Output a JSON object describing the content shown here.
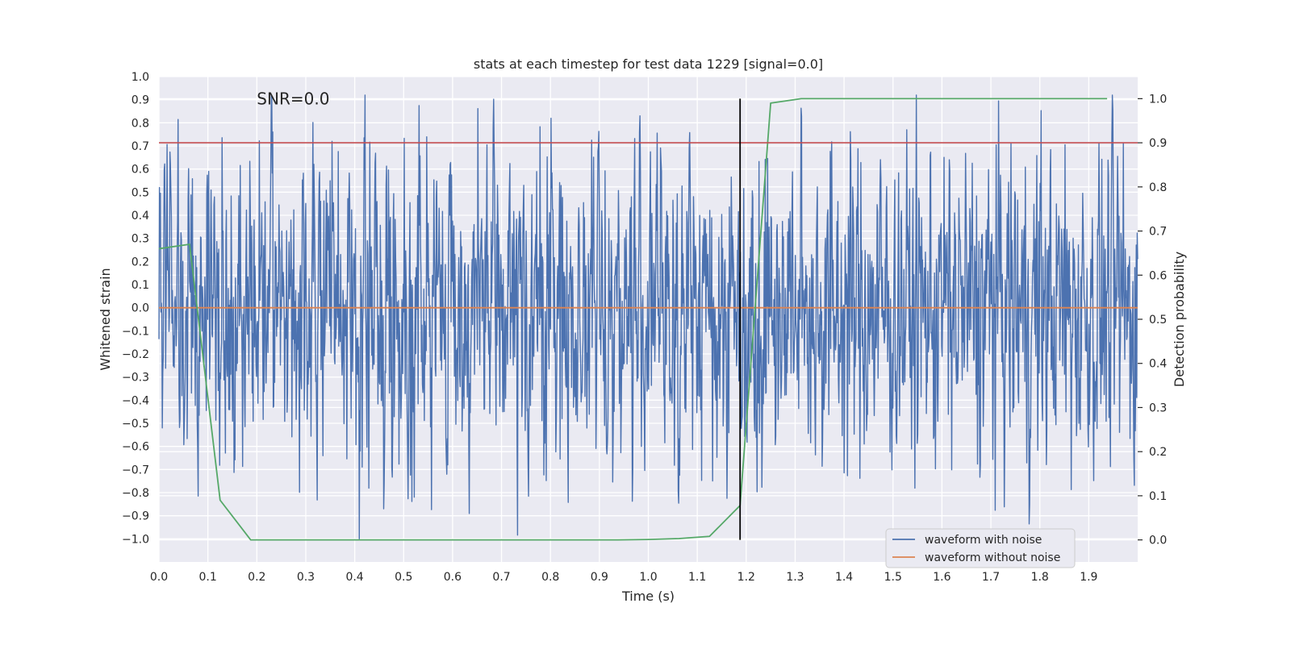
{
  "chart_data": {
    "type": "line",
    "title": "stats at each timestep for test data 1229 [signal=0.0]",
    "xlabel": "Time (s)",
    "ylabel": "Whitened strain",
    "y2label": "Detection probability",
    "annotation": "SNR=0.0",
    "xlim": [
      0.0,
      2.0
    ],
    "ylim": [
      -1.1,
      1.0
    ],
    "y2lim": [
      -0.05,
      1.05
    ],
    "grid": true,
    "legend_position": "lower right",
    "x_ticks": [
      "0.0",
      "0.1",
      "0.2",
      "0.3",
      "0.4",
      "0.5",
      "0.6",
      "0.7",
      "0.8",
      "0.9",
      "1.0",
      "1.1",
      "1.2",
      "1.3",
      "1.4",
      "1.5",
      "1.6",
      "1.7",
      "1.8",
      "1.9"
    ],
    "y_ticks": [
      "1.0",
      "0.9",
      "0.8",
      "0.7",
      "0.6",
      "0.5",
      "0.4",
      "0.3",
      "0.2",
      "0.1",
      "0.0",
      "−0.1",
      "−0.2",
      "−0.3",
      "−0.4",
      "−0.5",
      "−0.6",
      "−0.7",
      "−0.8",
      "−0.9",
      "−1.0"
    ],
    "y2_ticks": [
      "1.0",
      "0.9",
      "0.8",
      "0.7",
      "0.6",
      "0.5",
      "0.4",
      "0.3",
      "0.2",
      "0.1",
      "0.0"
    ],
    "series": [
      {
        "name": "waveform with noise",
        "axis": "left",
        "color": "#4c72b0",
        "description": "Noisy whitened strain sampled densely over 0-2 s, amplitude within about -1.0 to 0.92",
        "amplitude_range": [
          -1.0,
          0.92
        ],
        "samples": 2048
      },
      {
        "name": "waveform without noise",
        "axis": "left",
        "color": "#dd8452",
        "x": [
          0.0,
          2.0
        ],
        "y": [
          0.0,
          0.0
        ]
      },
      {
        "axis": "right",
        "color": "#55a868",
        "x": [
          0.0,
          0.0625,
          0.125,
          0.1875,
          0.25,
          0.3125,
          0.375,
          0.4375,
          0.5,
          0.5625,
          0.625,
          0.6875,
          0.75,
          0.8125,
          0.875,
          0.9375,
          1.0,
          1.0625,
          1.125,
          1.1875,
          1.25,
          1.3125,
          1.375,
          1.4375,
          1.5,
          1.5625,
          1.625,
          1.6875,
          1.75,
          1.8125,
          1.875,
          1.9375
        ],
        "y": [
          0.66,
          0.67,
          0.09,
          0.0,
          0.0,
          0.0,
          0.0,
          0.0,
          0.0,
          0.0,
          0.0,
          0.0,
          0.0,
          0.0,
          0.0,
          0.0,
          0.001,
          0.003,
          0.008,
          0.078,
          0.99,
          1.0,
          1.0,
          1.0,
          1.0,
          1.0,
          1.0,
          1.0,
          1.0,
          1.0,
          1.0,
          1.0
        ]
      }
    ],
    "hlines": [
      {
        "axis": "right",
        "y": 0.9,
        "color": "#c44e52"
      }
    ],
    "vlines": [
      {
        "x": 1.1875,
        "y2_range": [
          0.0,
          1.0
        ],
        "color": "#000000"
      }
    ]
  }
}
